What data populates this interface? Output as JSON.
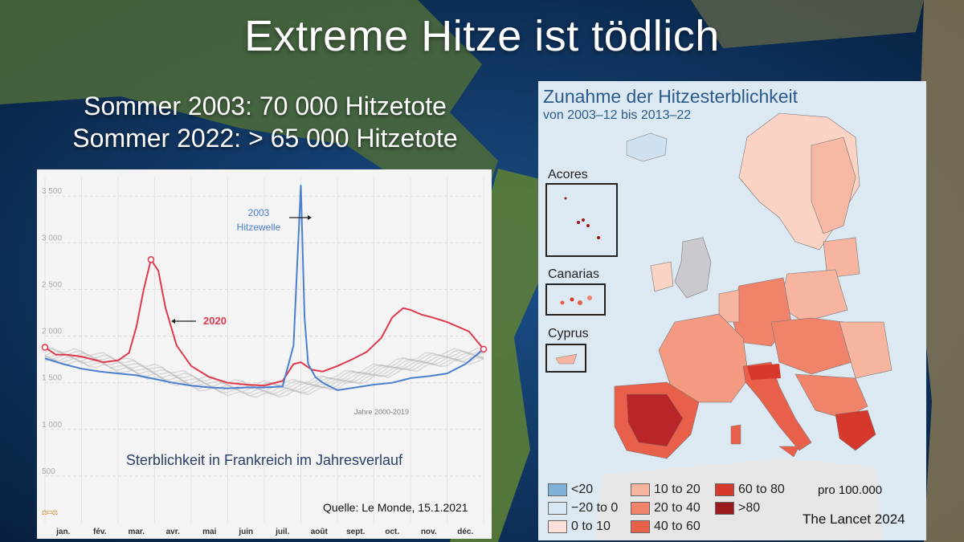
{
  "slide": {
    "title": "Extreme Hitze ist tödlich",
    "subtitle_lines": [
      "Sommer 2003: 70 000 Hitzetote",
      "Sommer 2022: > 65 000 Hitzetote"
    ]
  },
  "chart_data": {
    "type": "line",
    "caption": "Sterblichkeit in Frankreich im Jahresverlauf",
    "source": "Quelle: Le Monde, 15.1.2021",
    "yticks": [
      "3 500",
      "3 000",
      "2 500",
      "2 000",
      "1 500",
      "1 000",
      "500"
    ],
    "ytick_values": [
      3500,
      3000,
      2500,
      2000,
      1500,
      1000,
      500
    ],
    "ylim": [
      0,
      3700
    ],
    "categories": [
      "jan.",
      "fév.",
      "mar.",
      "avr.",
      "mai",
      "juin",
      "juil.",
      "août",
      "sept.",
      "oct.",
      "nov.",
      "déc."
    ],
    "annotations": {
      "hitzewelle_line1": "2003",
      "hitzewelle_line2": "Hitzewelle",
      "year2020": "2020",
      "baseline_label": "Jahre 2000-2019"
    },
    "series": [
      {
        "name": "2020",
        "color": "#e0394e",
        "x": [
          0,
          0.3,
          0.6,
          1,
          1.3,
          1.6,
          2,
          2.3,
          2.5,
          2.7,
          2.9,
          3.1,
          3.3,
          3.6,
          4,
          4.5,
          5,
          5.5,
          6,
          6.5,
          6.8,
          7,
          7.3,
          7.6,
          8,
          8.4,
          8.8,
          9.2,
          9.5,
          9.8,
          10,
          10.3,
          10.6,
          11,
          11.3,
          11.6,
          12
        ],
        "values": [
          1880,
          1800,
          1800,
          1780,
          1750,
          1720,
          1740,
          1820,
          2100,
          2500,
          2820,
          2700,
          2300,
          1900,
          1680,
          1560,
          1500,
          1480,
          1470,
          1520,
          1700,
          1720,
          1640,
          1620,
          1680,
          1750,
          1830,
          1980,
          2200,
          2300,
          2280,
          2230,
          2200,
          2150,
          2100,
          2050,
          1860
        ]
      },
      {
        "name": "2003",
        "color": "#4a7fcf",
        "x": [
          0,
          0.5,
          1,
          1.5,
          2,
          2.5,
          3,
          3.5,
          4,
          4.5,
          5,
          5.5,
          6,
          6.5,
          6.8,
          7,
          7.1,
          7.2,
          7.4,
          7.6,
          8,
          8.5,
          9,
          9.5,
          10,
          10.5,
          11,
          11.5,
          12
        ],
        "values": [
          1760,
          1700,
          1650,
          1620,
          1600,
          1580,
          1540,
          1500,
          1470,
          1450,
          1440,
          1450,
          1450,
          1460,
          1900,
          3620,
          2200,
          1700,
          1560,
          1500,
          1420,
          1450,
          1480,
          1500,
          1550,
          1570,
          1600,
          1700,
          1860
        ]
      }
    ]
  },
  "map": {
    "title": "Zunahme der Hitzesterblichkeit",
    "subtitle": "von 2003–12 bis 2013–22",
    "insets": [
      "Acores",
      "Canarias",
      "Cyprus"
    ],
    "legend": [
      {
        "label": "<20",
        "color": "#7fb2d8"
      },
      {
        "label": "−20 to 0",
        "color": "#d5e8f4"
      },
      {
        "label": "0 to 10",
        "color": "#fde0d6"
      },
      {
        "label": "10 to 20",
        "color": "#f7b49f"
      },
      {
        "label": "20 to 40",
        "color": "#f08369"
      },
      {
        "label": "40 to 60",
        "color": "#e9604a"
      },
      {
        "label": "60 to 80",
        "color": "#d6382b"
      },
      {
        "label": ">80",
        "color": "#9c1b1f"
      }
    ],
    "per_population": "pro 100.000",
    "source": "The Lancet 2024"
  },
  "colors": {
    "ocean": "#0b2a52",
    "land": "#5a7a3a",
    "baseline": "#bdbdbd"
  },
  "logo_icon": "logo-icon"
}
